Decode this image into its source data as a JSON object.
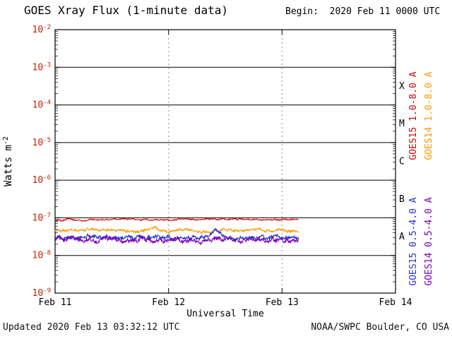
{
  "title": "GOES Xray Flux (1-minute data)",
  "begin_label": "Begin:  2020 Feb 11 0000 UTC",
  "footer": {
    "updated": "Updated 2020 Feb 13 03:32:12 UTC",
    "source": "NOAA/SWPC Boulder, CO USA"
  },
  "colors": {
    "axis_text": "#c42200",
    "plot_frame": "#000000",
    "decade_gridline": "#000000",
    "day_gridline": "#909090",
    "background": "#ffffff"
  },
  "chart_data": {
    "type": "line",
    "title": "GOES Xray Flux (1-minute data)",
    "xlabel": "Universal Time",
    "ylabel": "Watts m-2",
    "x_axis": {
      "label": "Universal Time",
      "range_days": 3,
      "ticks": [
        {
          "t": 0,
          "label": "Feb 11"
        },
        {
          "t": 1,
          "label": "Feb 12"
        },
        {
          "t": 2,
          "label": "Feb 13"
        },
        {
          "t": 3,
          "label": "Feb 14"
        }
      ],
      "dotted_gridlines_t": [
        1,
        2
      ]
    },
    "y_axis": {
      "label_prefix": "Watts m",
      "label_exponent": "-2",
      "base": 10,
      "exponent_ticks": [
        -2,
        -3,
        -4,
        -5,
        -6,
        -7,
        -8,
        -9
      ],
      "solid_gridline_exponents": [
        -3,
        -4,
        -5,
        -6,
        -7,
        -8
      ],
      "range_exponents": [
        -2,
        -9
      ]
    },
    "flare_classes": [
      {
        "label": "X",
        "between_exponents": [
          -3,
          -4
        ]
      },
      {
        "label": "M",
        "between_exponents": [
          -4,
          -5
        ]
      },
      {
        "label": "C",
        "between_exponents": [
          -5,
          -6
        ]
      },
      {
        "label": "B",
        "between_exponents": [
          -6,
          -7
        ]
      },
      {
        "label": "A",
        "between_exponents": [
          -7,
          -8
        ]
      }
    ],
    "series": [
      {
        "name": "GOES15 1.0-8.0 A",
        "color": "#d80000",
        "base_flux": 9e-08,
        "noise": 0.028,
        "t_start": 0,
        "t_end": 2.147,
        "label_column": 0,
        "label_position": "top"
      },
      {
        "name": "GOES14 1.0-8.0 A",
        "color": "#ff9900",
        "base_flux": 4.6e-08,
        "noise": 0.055,
        "t_start": 0,
        "t_end": 2.147,
        "label_column": 1,
        "label_position": "top"
      },
      {
        "name": "GOES15 0.5-4.0 A",
        "color": "#2233cc",
        "base_flux": 3e-08,
        "noise": 0.075,
        "t_start": 0,
        "t_end": 2.147,
        "bump": {
          "t": 1.42,
          "width": 0.05,
          "height": 0.17
        },
        "label_column": 0,
        "label_position": "bottom"
      },
      {
        "name": "GOES14 0.5-4.0 A",
        "color": "#7a00b8",
        "base_flux": 2.6e-08,
        "noise": 0.085,
        "t_start": 0,
        "t_end": 2.147,
        "bump": {
          "t": 1.45,
          "width": 0.07,
          "height": 0.05
        },
        "label_column": 1,
        "label_position": "bottom"
      }
    ]
  }
}
